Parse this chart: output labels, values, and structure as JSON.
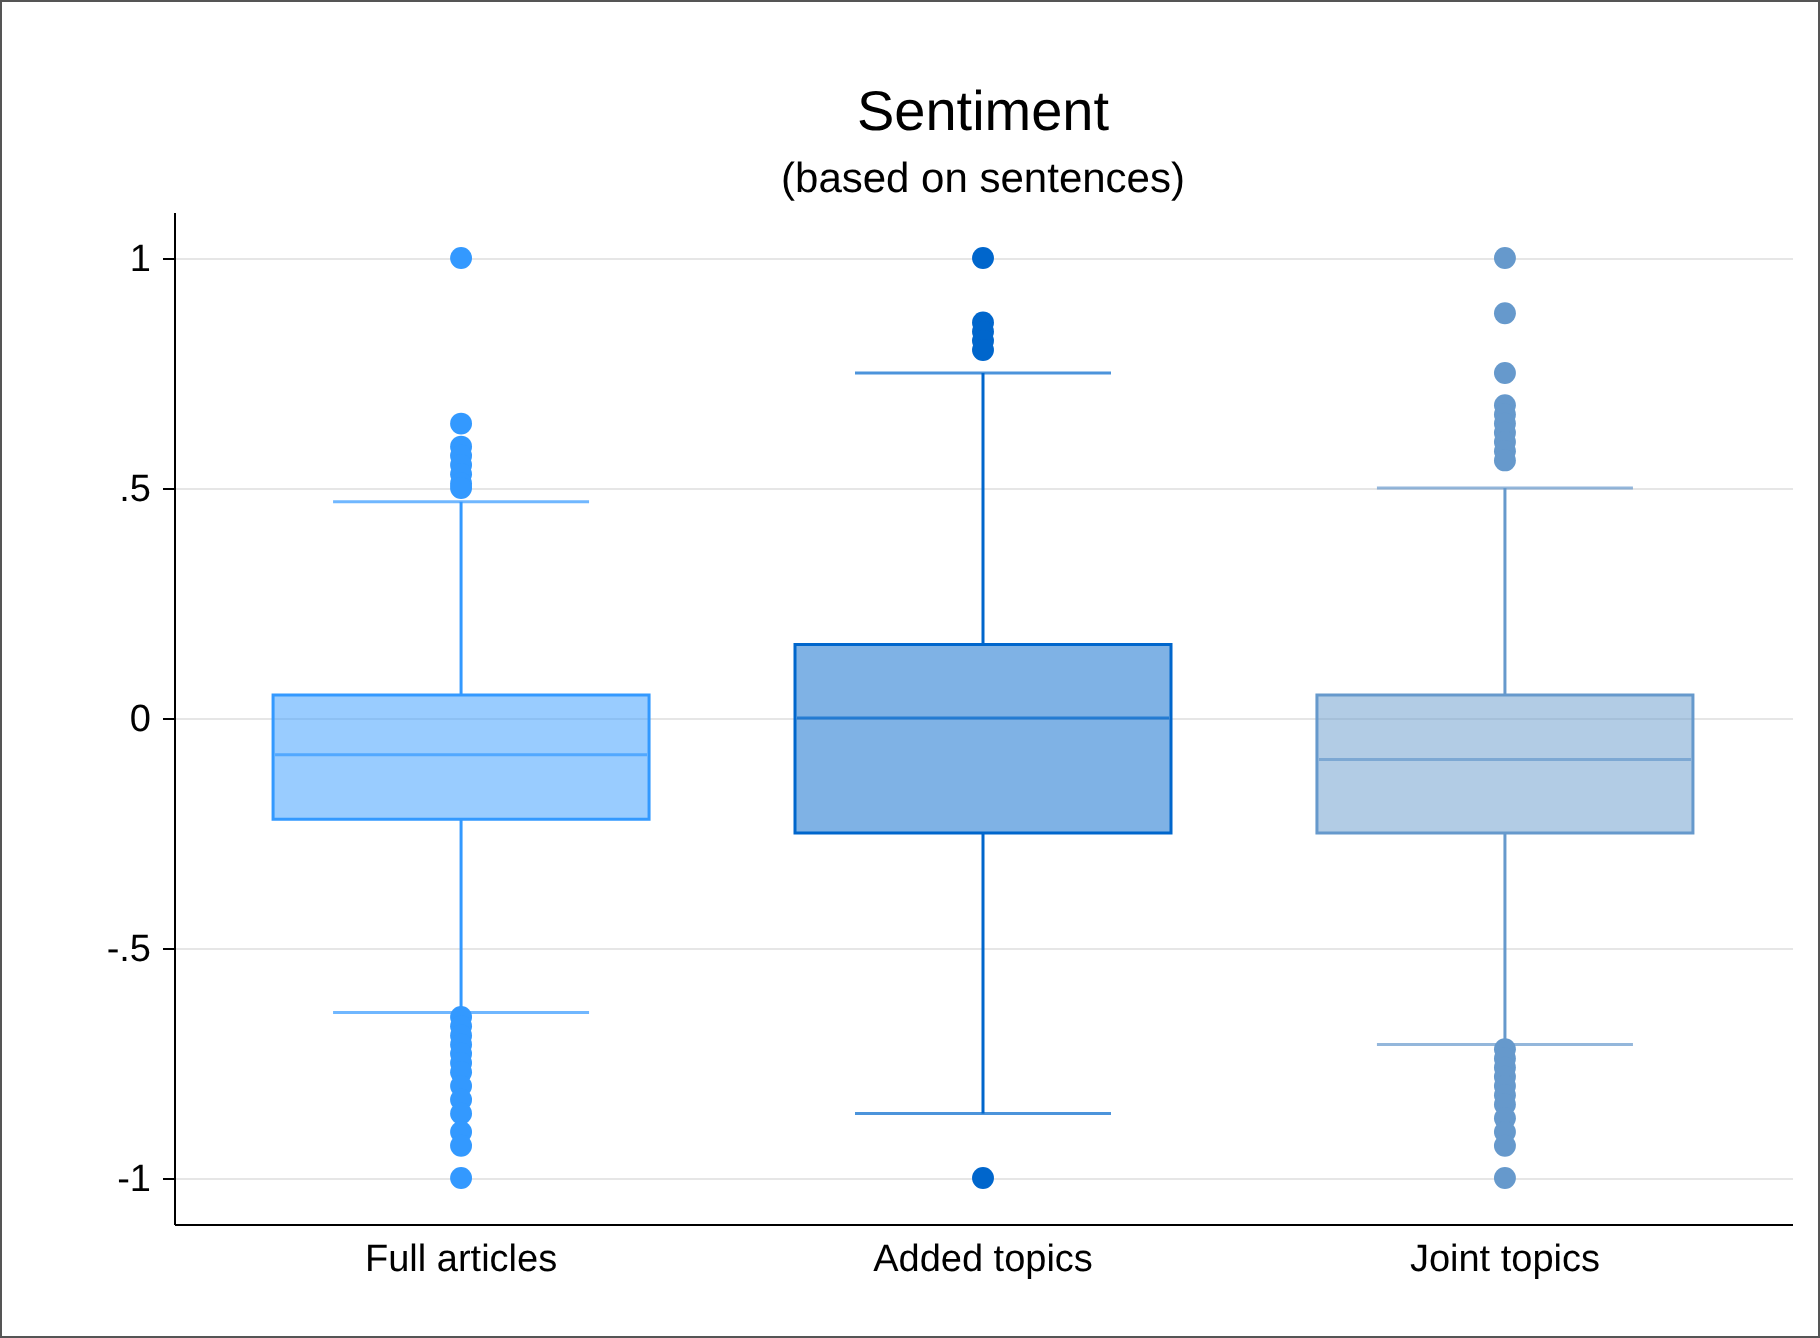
{
  "chart_data": {
    "type": "box",
    "title": "Sentiment",
    "subtitle": "(based on sentences)",
    "categories": [
      "Full articles",
      "Added topics",
      "Joint topics"
    ],
    "colors": [
      "#3399ff",
      "#0066cc",
      "#6699cc"
    ],
    "boxes": [
      {
        "low": -0.64,
        "q1": -0.22,
        "median": -0.08,
        "q3": 0.05,
        "high": 0.47,
        "outliers": [
          1,
          0.64,
          0.59,
          0.57,
          0.55,
          0.53,
          0.51,
          0.5,
          -0.65,
          -0.67,
          -0.69,
          -0.71,
          -0.73,
          -0.75,
          -0.77,
          -0.8,
          -0.83,
          -0.86,
          -0.9,
          -0.93,
          -1
        ]
      },
      {
        "low": -0.86,
        "q1": -0.25,
        "median": 0,
        "q3": 0.16,
        "high": 0.75,
        "outliers": [
          1,
          0.86,
          0.84,
          0.82,
          0.8,
          -1
        ]
      },
      {
        "low": -0.71,
        "q1": -0.25,
        "median": -0.09,
        "q3": 0.05,
        "high": 0.5,
        "outliers": [
          1,
          0.88,
          0.75,
          0.68,
          0.66,
          0.64,
          0.62,
          0.6,
          0.58,
          0.56,
          -0.72,
          -0.74,
          -0.76,
          -0.78,
          -0.8,
          -0.82,
          -0.84,
          -0.87,
          -0.9,
          -0.93,
          -1
        ]
      }
    ],
    "ylim": [
      -1.1,
      1.1
    ],
    "yticks": [
      {
        "value": -1,
        "label": "-1"
      },
      {
        "value": -0.5,
        "label": "-.5"
      },
      0,
      {
        "value": 0.5,
        "label": ".5"
      },
      1
    ],
    "grid": "y"
  }
}
